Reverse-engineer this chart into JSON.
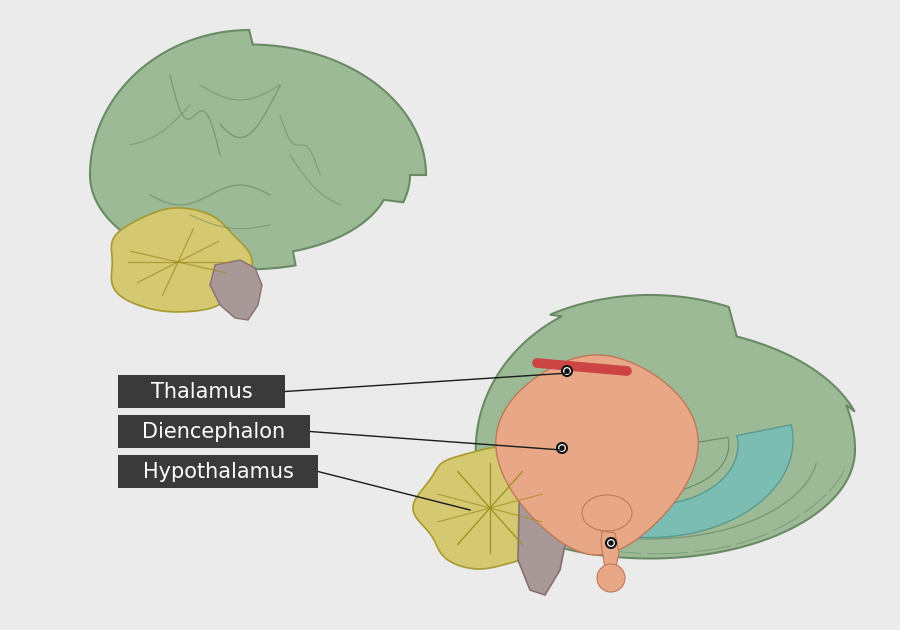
{
  "bg_color": "#ebebeb",
  "label_bg_color": "#3a3a3a",
  "label_text_color": "#ffffff",
  "label_font_size": 15,
  "line_color": "#1a1a1a",
  "labels": [
    "Thalamus",
    "Diencephalon",
    "Hypothalamus"
  ],
  "brain_green": "#9cba96",
  "brain_green_edge": "#6a8a65",
  "brain_teal": "#7bbdb3",
  "brain_teal_edge": "#5a9a90",
  "cerebellum_yellow": "#d4c870",
  "cerebellum_edge": "#a89a30",
  "brainstem_gray": "#a89898",
  "brainstem_edge": "#887070",
  "pink_region": "#e8a888",
  "pink_edge": "#c07858",
  "red_stripe": "#cc4444",
  "dot_color": "#111111"
}
